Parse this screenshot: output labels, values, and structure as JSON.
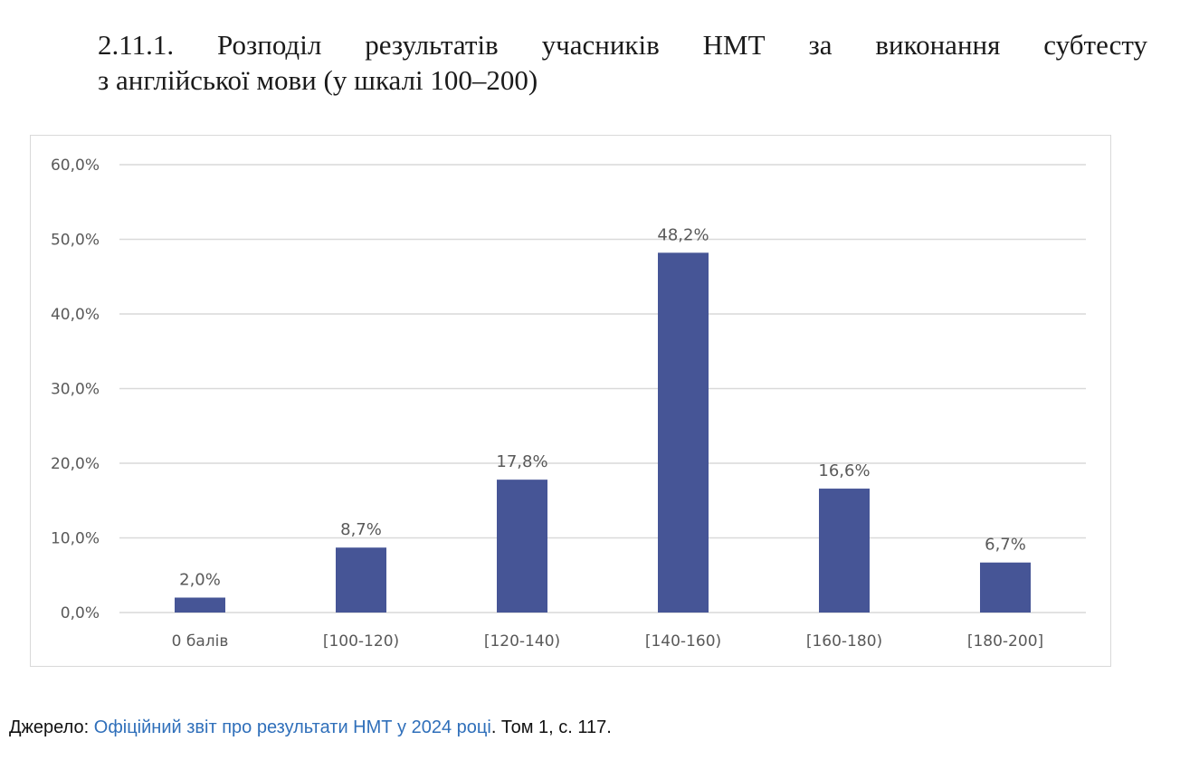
{
  "heading": {
    "line1": "2.11.1. Розподіл результатів учасників НМТ за виконання субтесту",
    "line2": "з англійської мови (у шкалі 100–200)"
  },
  "source": {
    "prefix": "Джерело: ",
    "link_text": "Офіційний звіт про результати НМТ у 2024 році",
    "suffix": ". Том 1, с. 117."
  },
  "colors": {
    "bar": "#465596",
    "grid": "#d9d9d9",
    "text": "#595959",
    "link": "#2f6fba"
  },
  "chart_data": {
    "type": "bar",
    "title": "",
    "xlabel": "",
    "ylabel": "",
    "categories": [
      "0 балів",
      "[100-120)",
      "[120-140)",
      "[140-160)",
      "[160-180)",
      "[180-200]"
    ],
    "values": [
      2.0,
      8.7,
      17.8,
      48.2,
      16.6,
      6.7
    ],
    "data_labels": [
      "2,0%",
      "8,7%",
      "17,8%",
      "48,2%",
      "16,6%",
      "6,7%"
    ],
    "ylim": [
      0,
      60
    ],
    "y_ticks": [
      0,
      10,
      20,
      30,
      40,
      50,
      60
    ],
    "y_tick_labels": [
      "0,0%",
      "10,0%",
      "20,0%",
      "30,0%",
      "40,0%",
      "50,0%",
      "60,0%"
    ],
    "grid": true,
    "legend": "none"
  }
}
